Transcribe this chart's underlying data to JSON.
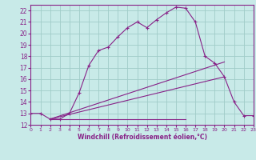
{
  "xlabel": "Windchill (Refroidissement éolien,°C)",
  "background_color": "#c8eae8",
  "grid_color": "#a0ccc8",
  "line_color": "#882288",
  "xmin": 0,
  "xmax": 23,
  "ymin": 12,
  "ymax": 22.5,
  "x_ticks": [
    0,
    1,
    2,
    3,
    4,
    5,
    6,
    7,
    8,
    9,
    10,
    11,
    12,
    13,
    14,
    15,
    16,
    17,
    18,
    19,
    20,
    21,
    22,
    23
  ],
  "y_ticks": [
    12,
    13,
    14,
    15,
    16,
    17,
    18,
    19,
    20,
    21,
    22
  ],
  "curve1_x": [
    0,
    1,
    2,
    3,
    4,
    5,
    6,
    7,
    8,
    9,
    10,
    11,
    12,
    13,
    14,
    15,
    16,
    17,
    18,
    19,
    20,
    21,
    22,
    23
  ],
  "curve1_y": [
    13.0,
    13.0,
    12.5,
    12.5,
    13.0,
    14.8,
    17.2,
    18.5,
    18.8,
    19.7,
    20.5,
    21.0,
    20.5,
    21.2,
    21.8,
    22.3,
    22.2,
    21.0,
    18.0,
    17.4,
    16.2,
    14.0,
    12.8,
    12.8
  ],
  "curve2_x": [
    2,
    20
  ],
  "curve2_y": [
    12.5,
    17.5
  ],
  "curve3_x": [
    2,
    20
  ],
  "curve3_y": [
    12.5,
    16.2
  ],
  "curve4_x": [
    2,
    16
  ],
  "curve4_y": [
    12.5,
    12.5
  ]
}
